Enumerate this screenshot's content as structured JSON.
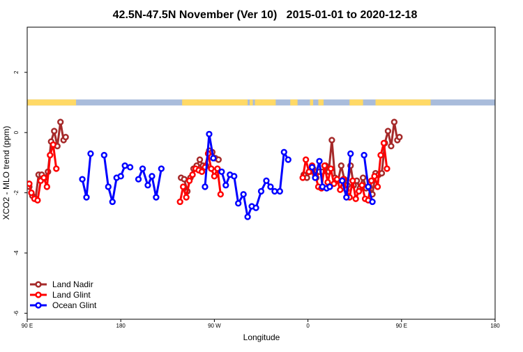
{
  "chart_data": {
    "type": "line",
    "title": "42.5N-47.5N November (Ver 10)   2015-01-01 to 2020-12-18",
    "xlabel": "Longitude",
    "ylabel": "XCO2 - MLO trend (ppm)",
    "xlim": [
      90,
      540
    ],
    "ylim": [
      -6.2,
      3.5
    ],
    "x_ticks": [
      {
        "value": 90,
        "label": "90 E"
      },
      {
        "value": 180,
        "label": "180"
      },
      {
        "value": 270,
        "label": "90 W"
      },
      {
        "value": 360,
        "label": "0"
      },
      {
        "value": 450,
        "label": "90 E"
      },
      {
        "value": 540,
        "label": "180"
      }
    ],
    "y_ticks": [
      {
        "value": 2,
        "label": "2"
      },
      {
        "value": 0,
        "label": "0"
      },
      {
        "value": -2,
        "label": "-2"
      },
      {
        "value": -4,
        "label": "-4"
      },
      {
        "value": -6,
        "label": "-6"
      }
    ],
    "land_band": {
      "y_range": [
        0.9,
        1.1
      ],
      "land_color": "#FFD966",
      "ocean_color": "#A9BCDB",
      "land_segments": [
        [
          90,
          137
        ],
        [
          239,
          302
        ],
        [
          304,
          307
        ],
        [
          309,
          329
        ],
        [
          343,
          350
        ],
        [
          362,
          365
        ],
        [
          370,
          375
        ],
        [
          400,
          413
        ],
        [
          425,
          478
        ]
      ]
    },
    "legend": {
      "position": "bottom-left"
    },
    "series": [
      {
        "name": "Land Nadir",
        "color": "#A52A2A",
        "points": [
          [
            92,
            -1.8
          ],
          [
            95,
            -2.1
          ],
          [
            98,
            -2.2
          ],
          [
            101,
            -1.4
          ],
          [
            104,
            -1.4
          ],
          [
            107,
            -1.5
          ],
          [
            110,
            -1.3
          ],
          [
            113,
            -0.3
          ],
          [
            116,
            0.05
          ],
          [
            119,
            -0.45
          ],
          [
            122,
            0.35
          ],
          [
            125,
            -0.25
          ],
          [
            127,
            -0.15
          ],
          null,
          [
            238,
            -1.5
          ],
          [
            241,
            -1.55
          ],
          [
            244,
            -1.95
          ],
          [
            247,
            -1.5
          ],
          [
            250,
            -1.2
          ],
          [
            253,
            -1.1
          ],
          [
            256,
            -0.9
          ],
          [
            259,
            -1.1
          ],
          [
            262,
            -1.1
          ],
          [
            265,
            -0.6
          ],
          [
            268,
            -0.65
          ],
          [
            271,
            -0.85
          ],
          [
            274,
            -0.9
          ],
          null,
          [
            356,
            -1.4
          ],
          [
            359,
            -1.5
          ],
          [
            362,
            -1.3
          ],
          [
            365,
            -1.2
          ],
          [
            368,
            -1.5
          ],
          [
            371,
            -1.3
          ],
          [
            374,
            -1.3
          ],
          [
            377,
            -1.1
          ],
          [
            380,
            -1.3
          ],
          [
            383,
            -0.25
          ],
          [
            386,
            -1.5
          ],
          [
            389,
            -1.6
          ],
          [
            392,
            -1.1
          ],
          [
            395,
            -1.55
          ],
          [
            398,
            -1.75
          ],
          [
            401,
            -1.1
          ],
          [
            404,
            -1.75
          ],
          [
            407,
            -1.6
          ],
          [
            410,
            -1.85
          ],
          [
            413,
            -1.5
          ],
          [
            416,
            -1.85
          ],
          [
            419,
            -1.8
          ],
          [
            422,
            -2.05
          ],
          [
            425,
            -1.35
          ],
          [
            428,
            -1.4
          ],
          [
            431,
            -1.35
          ],
          [
            434,
            -0.35
          ],
          [
            437,
            0.05
          ],
          [
            440,
            -0.45
          ],
          [
            443,
            0.35
          ],
          [
            446,
            -0.25
          ],
          [
            448,
            -0.15
          ]
        ]
      },
      {
        "name": "Land Glint",
        "color": "#FF0000",
        "points": [
          [
            92,
            -1.7
          ],
          [
            94,
            -2.0
          ],
          [
            97,
            -2.2
          ],
          [
            100,
            -2.25
          ],
          [
            103,
            -1.6
          ],
          [
            106,
            -1.5
          ],
          [
            109,
            -1.8
          ],
          [
            112,
            -0.75
          ],
          [
            115,
            -0.4
          ],
          [
            118,
            -1.2
          ],
          null,
          [
            237,
            -2.3
          ],
          [
            240,
            -1.8
          ],
          [
            243,
            -2.15
          ],
          [
            246,
            -1.6
          ],
          [
            249,
            -1.4
          ],
          [
            252,
            -1.2
          ],
          [
            255,
            -1.25
          ],
          [
            258,
            -1.3
          ],
          [
            261,
            -1.15
          ],
          [
            264,
            -0.7
          ],
          [
            267,
            -1.2
          ],
          [
            270,
            -1.45
          ],
          [
            273,
            -1.2
          ],
          [
            276,
            -2.05
          ],
          null,
          [
            355,
            -1.5
          ],
          [
            358,
            -0.9
          ],
          [
            361,
            -1.3
          ],
          [
            364,
            -1.1
          ],
          [
            367,
            -1.4
          ],
          [
            370,
            -1.8
          ],
          [
            373,
            -1.85
          ],
          [
            376,
            -1.1
          ],
          [
            379,
            -1.65
          ],
          [
            382,
            -1.2
          ],
          [
            385,
            -1.7
          ],
          [
            388,
            -1.55
          ],
          [
            391,
            -1.9
          ],
          [
            394,
            -1.55
          ],
          [
            397,
            -1.9
          ],
          [
            400,
            -2.15
          ],
          [
            403,
            -1.6
          ],
          [
            406,
            -2.2
          ],
          [
            409,
            -1.95
          ],
          [
            412,
            -1.75
          ],
          [
            415,
            -2.2
          ],
          [
            418,
            -2.25
          ],
          [
            421,
            -1.6
          ],
          [
            424,
            -1.45
          ],
          [
            427,
            -1.8
          ],
          [
            430,
            -0.75
          ],
          [
            433,
            -0.35
          ],
          [
            436,
            -1.2
          ]
        ]
      },
      {
        "name": "Ocean Glint",
        "color": "#0000FF",
        "points": [
          [
            143,
            -1.55
          ],
          [
            147,
            -2.15
          ],
          [
            151,
            -0.7
          ],
          null,
          [
            164,
            -0.75
          ],
          [
            168,
            -1.8
          ],
          [
            172,
            -2.3
          ],
          [
            176,
            -1.5
          ],
          [
            180,
            -1.45
          ],
          [
            184,
            -1.1
          ],
          [
            189,
            -1.15
          ],
          null,
          [
            197,
            -1.55
          ],
          [
            201,
            -1.2
          ],
          [
            206,
            -1.75
          ],
          [
            210,
            -1.45
          ],
          [
            214,
            -2.15
          ],
          [
            219,
            -1.2
          ],
          null,
          [
            261,
            -1.8
          ],
          [
            265,
            -0.05
          ],
          [
            269,
            -0.85
          ],
          null,
          [
            277,
            -1.3
          ],
          [
            281,
            -1.75
          ],
          [
            285,
            -1.4
          ],
          [
            289,
            -1.45
          ],
          [
            293,
            -2.35
          ],
          [
            298,
            -2.05
          ],
          [
            302,
            -2.8
          ],
          [
            306,
            -2.45
          ],
          [
            310,
            -2.5
          ],
          [
            315,
            -1.95
          ],
          [
            320,
            -1.6
          ],
          [
            324,
            -1.8
          ],
          [
            328,
            -1.95
          ],
          [
            333,
            -1.95
          ],
          [
            337,
            -0.65
          ],
          [
            341,
            -0.9
          ],
          null,
          [
            364,
            -1.15
          ],
          [
            367,
            -1.5
          ],
          [
            371,
            -0.95
          ],
          [
            374,
            -1.8
          ],
          [
            378,
            -1.85
          ],
          [
            381,
            -1.8
          ],
          null,
          [
            393,
            -1.6
          ],
          [
            397,
            -2.15
          ],
          [
            401,
            -0.7
          ],
          null,
          [
            414,
            -0.75
          ],
          [
            418,
            -1.8
          ],
          [
            422,
            -2.3
          ]
        ]
      }
    ]
  }
}
